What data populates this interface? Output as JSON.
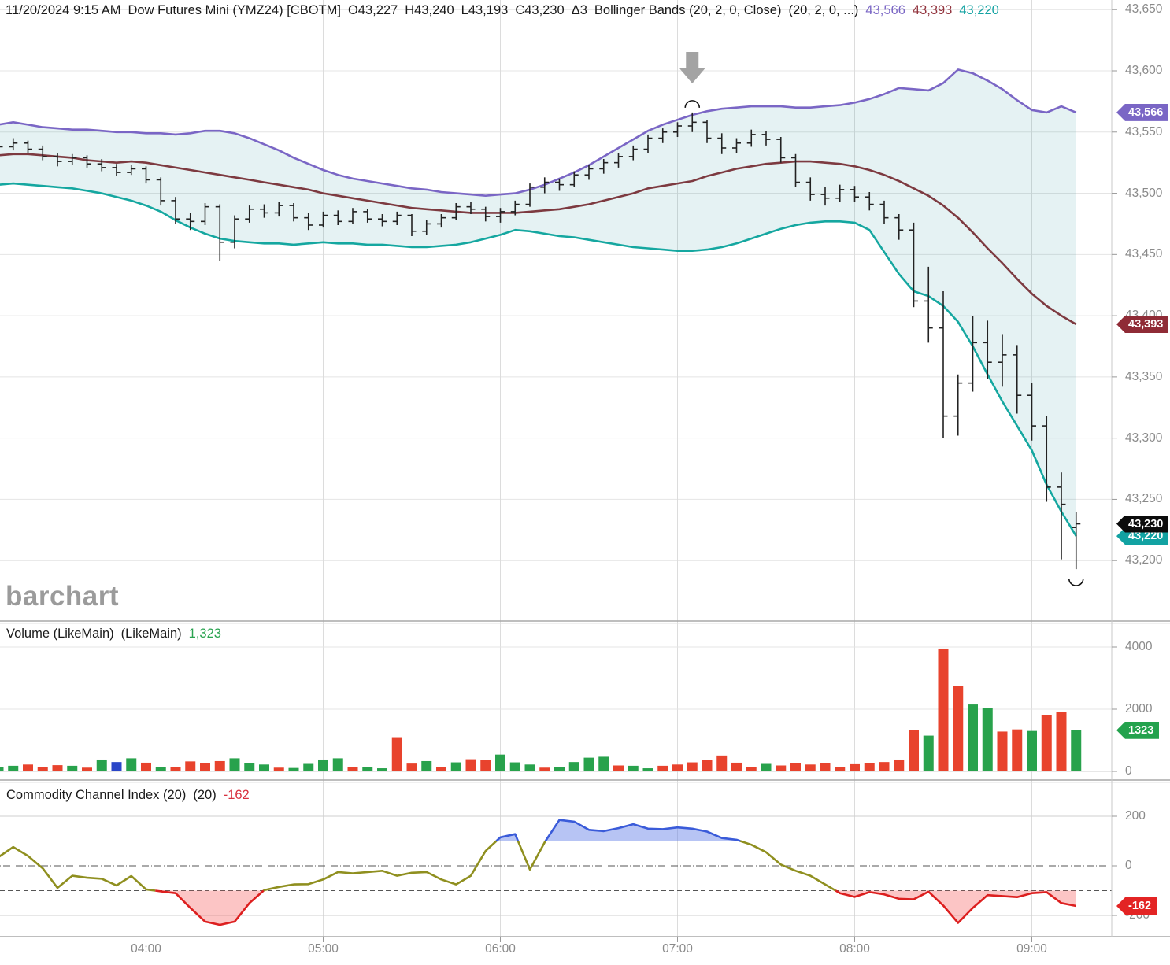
{
  "header": {
    "datetime": "11/20/2024 9:15 AM",
    "symbol": "Dow Futures Mini (YMZ24) [CBOTM]",
    "open": "O43,227",
    "high": "H43,240",
    "low": "L43,193",
    "close": "C43,230",
    "change": "Δ3",
    "study": "Bollinger Bands (20, 2, 0, Close)",
    "study_params": "(20, 2, 0, ...)",
    "band_upper": "43,566",
    "band_middle": "43,393",
    "band_lower": "43,220"
  },
  "watermark": "barchart",
  "volume_panel": {
    "label": "Volume (LikeMain)",
    "label2": "(LikeMain)",
    "value": "1,323"
  },
  "cci_panel": {
    "label": "Commodity Channel Index (20)",
    "label2": "(20)",
    "value": "-162"
  },
  "colors": {
    "up": "#28a24c",
    "down": "#e8432d",
    "neutral": "#2b46c8",
    "band_upper": "#7a66c5",
    "band_middle": "#7d3a40",
    "band_lower": "#15a7a0",
    "band_fill": "rgba(40,150,160,0.12)",
    "cci_line": "#8f8f1f",
    "cci_hi": "#3a5bd9",
    "cci_hi_fill": "rgba(95,125,230,0.45)",
    "cci_lo": "#dd1f1f",
    "cci_lo_fill": "rgba(246,90,90,0.35)",
    "bar": "#222222",
    "arrow": "#a3a3a3",
    "badge_upper": "#7a66c5",
    "badge_middle": "#8f2b36",
    "badge_close": "#0c0c0c",
    "badge_lower": "#12a2a2",
    "badge_volume": "#23a24d",
    "badge_cci": "#e32424"
  },
  "chart_data": {
    "type": "ohlc-multi-panel",
    "interval_minutes": 5,
    "start_time": "03:10",
    "hour_labels": [
      "04:00",
      "05:00",
      "06:00",
      "07:00",
      "08:00",
      "09:00"
    ],
    "hour_bar_indexes": [
      10,
      22,
      34,
      46,
      58,
      70
    ],
    "price_axis": {
      "ticks": [
        43650,
        43600,
        43550,
        43500,
        43450,
        43400,
        43350,
        43300,
        43250,
        43200
      ],
      "tick_labels": [
        "43,650",
        "43,600",
        "43,550",
        "43,500",
        "43,450",
        "43,400",
        "43,350",
        "43,300",
        "43,250",
        "43,200"
      ]
    },
    "bars": [
      [
        43536,
        43544,
        43533,
        43538
      ],
      [
        43538,
        43545,
        43535,
        43541
      ],
      [
        43541,
        43543,
        43533,
        43536
      ],
      [
        43536,
        43539,
        43527,
        43530
      ],
      [
        43530,
        43533,
        43522,
        43526
      ],
      [
        43526,
        43532,
        43523,
        43529
      ],
      [
        43529,
        43531,
        43521,
        43524
      ],
      [
        43524,
        43528,
        43518,
        43521
      ],
      [
        43521,
        43524,
        43514,
        43517
      ],
      [
        43517,
        43523,
        43515,
        43520
      ],
      [
        43520,
        43522,
        43508,
        43511
      ],
      [
        43511,
        43513,
        43490,
        43494
      ],
      [
        43494,
        43497,
        43475,
        43479
      ],
      [
        43479,
        43484,
        43470,
        43477
      ],
      [
        43477,
        43492,
        43474,
        43489
      ],
      [
        43489,
        43491,
        43445,
        43460
      ],
      [
        43460,
        43482,
        43455,
        43479
      ],
      [
        43479,
        43490,
        43476,
        43487
      ],
      [
        43487,
        43491,
        43480,
        43484
      ],
      [
        43484,
        43493,
        43481,
        43490
      ],
      [
        43490,
        43492,
        43477,
        43480
      ],
      [
        43480,
        43484,
        43470,
        43474
      ],
      [
        43474,
        43485,
        43472,
        43482
      ],
      [
        43482,
        43486,
        43474,
        43477
      ],
      [
        43477,
        43488,
        43475,
        43485
      ],
      [
        43485,
        43487,
        43476,
        43479
      ],
      [
        43479,
        43483,
        43473,
        43477
      ],
      [
        43477,
        43485,
        43474,
        43482
      ],
      [
        43482,
        43483,
        43465,
        43469
      ],
      [
        43469,
        43478,
        43466,
        43475
      ],
      [
        43475,
        43483,
        43472,
        43480
      ],
      [
        43480,
        43492,
        43478,
        43489
      ],
      [
        43489,
        43493,
        43483,
        43487
      ],
      [
        43487,
        43489,
        43477,
        43481
      ],
      [
        43481,
        43488,
        43476,
        43485
      ],
      [
        43485,
        43494,
        43482,
        43491
      ],
      [
        43491,
        43508,
        43489,
        43505
      ],
      [
        43505,
        43513,
        43500,
        43509
      ],
      [
        43509,
        43512,
        43502,
        43507
      ],
      [
        43507,
        43518,
        43505,
        43515
      ],
      [
        43515,
        43523,
        43511,
        43520
      ],
      [
        43520,
        43528,
        43516,
        43525
      ],
      [
        43525,
        43533,
        43521,
        43530
      ],
      [
        43530,
        43539,
        43527,
        43536
      ],
      [
        43536,
        43548,
        43533,
        43545
      ],
      [
        43545,
        43553,
        43541,
        43550
      ],
      [
        43550,
        43558,
        43546,
        43555
      ],
      [
        43555,
        43566,
        43550,
        43558
      ],
      [
        43558,
        43560,
        43541,
        43545
      ],
      [
        43545,
        43549,
        43532,
        43537
      ],
      [
        43537,
        43545,
        43533,
        43541
      ],
      [
        43541,
        43552,
        43538,
        43548
      ],
      [
        43548,
        43551,
        43539,
        43544
      ],
      [
        43544,
        43546,
        43525,
        43529
      ],
      [
        43529,
        43532,
        43505,
        43509
      ],
      [
        43509,
        43513,
        43494,
        43499
      ],
      [
        43499,
        43505,
        43490,
        43496
      ],
      [
        43496,
        43507,
        43493,
        43503
      ],
      [
        43503,
        43506,
        43493,
        43497
      ],
      [
        43497,
        43501,
        43486,
        43491
      ],
      [
        43491,
        43494,
        43475,
        43480
      ],
      [
        43480,
        43483,
        43462,
        43470
      ],
      [
        43470,
        43476,
        43407,
        43412
      ],
      [
        43412,
        43440,
        43378,
        43390
      ],
      [
        43390,
        43420,
        43300,
        43318
      ],
      [
        43318,
        43352,
        43302,
        43345
      ],
      [
        43345,
        43400,
        43338,
        43378
      ],
      [
        43378,
        43396,
        43348,
        43362
      ],
      [
        43362,
        43385,
        43342,
        43368
      ],
      [
        43368,
        43376,
        43320,
        43335
      ],
      [
        43335,
        43345,
        43298,
        43310
      ],
      [
        43310,
        43318,
        43248,
        43260
      ],
      [
        43260,
        43272,
        43201,
        43246
      ],
      [
        43227,
        43240,
        43193,
        43230
      ]
    ],
    "bollinger": {
      "upper": [
        43556,
        43558,
        43556,
        43554,
        43553,
        43552,
        43552,
        43551,
        43550,
        43550,
        43549,
        43549,
        43548,
        43549,
        43551,
        43551,
        43549,
        43545,
        43540,
        43535,
        43529,
        43524,
        43519,
        43515,
        43512,
        43510,
        43508,
        43506,
        43504,
        43503,
        43501,
        43500,
        43499,
        43498,
        43499,
        43500,
        43503,
        43507,
        43512,
        43517,
        43523,
        43530,
        43537,
        43544,
        43551,
        43556,
        43560,
        43564,
        43567,
        43569,
        43570,
        43571,
        43571,
        43571,
        43570,
        43570,
        43571,
        43572,
        43574,
        43577,
        43581,
        43586,
        43585,
        43584,
        43590,
        43601,
        43598,
        43592,
        43585,
        43576,
        43568,
        43566,
        43571,
        43566
      ],
      "middle": [
        43531,
        43532,
        43532,
        43531,
        43530,
        43529,
        43527,
        43526,
        43525,
        43526,
        43525,
        43523,
        43521,
        43519,
        43517,
        43515,
        43513,
        43511,
        43509,
        43507,
        43505,
        43503,
        43500,
        43498,
        43496,
        43494,
        43492,
        43490,
        43488,
        43487,
        43486,
        43485,
        43484,
        43484,
        43484,
        43484,
        43485,
        43486,
        43487,
        43489,
        43491,
        43494,
        43497,
        43500,
        43504,
        43506,
        43508,
        43510,
        43514,
        43517,
        43520,
        43522,
        43524,
        43525,
        43526,
        43526,
        43525,
        43524,
        43522,
        43519,
        43515,
        43510,
        43504,
        43498,
        43490,
        43480,
        43468,
        43455,
        43443,
        43430,
        43418,
        43408,
        43400,
        43393
      ],
      "lower": [
        43507,
        43508,
        43507,
        43506,
        43505,
        43504,
        43502,
        43500,
        43497,
        43494,
        43490,
        43485,
        43478,
        43472,
        43467,
        43463,
        43461,
        43460,
        43459,
        43459,
        43458,
        43459,
        43460,
        43459,
        43459,
        43458,
        43458,
        43457,
        43456,
        43456,
        43457,
        43458,
        43460,
        43463,
        43466,
        43470,
        43469,
        43467,
        43465,
        43464,
        43462,
        43460,
        43458,
        43456,
        43455,
        43454,
        43453,
        43453,
        43454,
        43456,
        43459,
        43463,
        43467,
        43471,
        43474,
        43476,
        43477,
        43477,
        43476,
        43470,
        43452,
        43434,
        43420,
        43416,
        43408,
        43395,
        43375,
        43352,
        43330,
        43310,
        43290,
        43262,
        43240,
        43220
      ]
    },
    "volume": {
      "axis_ticks": [
        4000,
        2000,
        0
      ],
      "values": [
        150,
        180,
        220,
        150,
        200,
        180,
        120,
        380,
        300,
        420,
        280,
        150,
        130,
        320,
        260,
        330,
        420,
        260,
        220,
        120,
        110,
        240,
        380,
        420,
        150,
        130,
        100,
        1100,
        250,
        330,
        150,
        290,
        390,
        370,
        540,
        290,
        220,
        120,
        150,
        300,
        440,
        470,
        190,
        180,
        100,
        180,
        220,
        290,
        370,
        510,
        280,
        150,
        240,
        190,
        260,
        220,
        270,
        150,
        230,
        260,
        300,
        380,
        1340,
        1150,
        3950,
        2750,
        2150,
        2050,
        1280,
        1350,
        1300,
        1800,
        1900,
        1323
      ],
      "bar_colors": [
        "g",
        "g",
        "r",
        "r",
        "r",
        "g",
        "r",
        "g",
        "b",
        "g",
        "r",
        "g",
        "r",
        "r",
        "r",
        "r",
        "g",
        "g",
        "g",
        "r",
        "g",
        "g",
        "g",
        "g",
        "r",
        "g",
        "g",
        "r",
        "r",
        "g",
        "r",
        "g",
        "r",
        "r",
        "g",
        "g",
        "g",
        "r",
        "g",
        "g",
        "g",
        "g",
        "r",
        "g",
        "g",
        "r",
        "r",
        "r",
        "r",
        "r",
        "r",
        "r",
        "g",
        "r",
        "r",
        "r",
        "r",
        "r",
        "r",
        "r",
        "r",
        "r",
        "r",
        "g",
        "r",
        "r",
        "g",
        "g",
        "r",
        "r",
        "g",
        "r",
        "r",
        "g"
      ]
    },
    "cci": {
      "axis_ticks": [
        200,
        0,
        -200
      ],
      "thresholds": [
        100,
        -100
      ],
      "values": [
        35,
        76,
        40,
        -10,
        -89,
        -40,
        -48,
        -52,
        -79,
        -41,
        -95,
        -103,
        -110,
        -170,
        -225,
        -238,
        -225,
        -150,
        -98,
        -85,
        -75,
        -74,
        -55,
        -25,
        -30,
        -25,
        -20,
        -40,
        -28,
        -25,
        -55,
        -75,
        -40,
        60,
        115,
        128,
        -15,
        95,
        185,
        178,
        145,
        140,
        152,
        168,
        150,
        148,
        155,
        150,
        138,
        112,
        105,
        85,
        55,
        5,
        -20,
        -40,
        -75,
        -110,
        -125,
        -106,
        -115,
        -133,
        -135,
        -104,
        -160,
        -230,
        -170,
        -118,
        -122,
        -126,
        -110,
        -106,
        -150,
        -162
      ]
    },
    "markers": {
      "arrow_bar_index": 47,
      "high_arc_bar_index": 47,
      "low_arc_bar_index": 73
    },
    "badges": [
      {
        "name": "upper-band-badge",
        "panel": "price",
        "value": 43566,
        "text": "43,566",
        "color_key": "badge_upper",
        "z": 2
      },
      {
        "name": "lower-band-badge",
        "panel": "price",
        "value": 43220,
        "text": "43,220",
        "color_key": "badge_lower",
        "z": 3
      },
      {
        "name": "last-price-badge",
        "panel": "price",
        "value": 43230,
        "text": "43,230",
        "color_key": "badge_close",
        "z": 4
      },
      {
        "name": "middle-band-badge",
        "panel": "price",
        "value": 43393,
        "text": "43,393",
        "color_key": "badge_middle",
        "z": 2
      },
      {
        "name": "volume-badge",
        "panel": "volume",
        "value": 1323,
        "text": "1323",
        "color_key": "badge_volume",
        "z": 2
      },
      {
        "name": "cci-badge",
        "panel": "cci",
        "value": -162,
        "text": "-162",
        "color_key": "badge_cci",
        "z": 2
      }
    ]
  }
}
